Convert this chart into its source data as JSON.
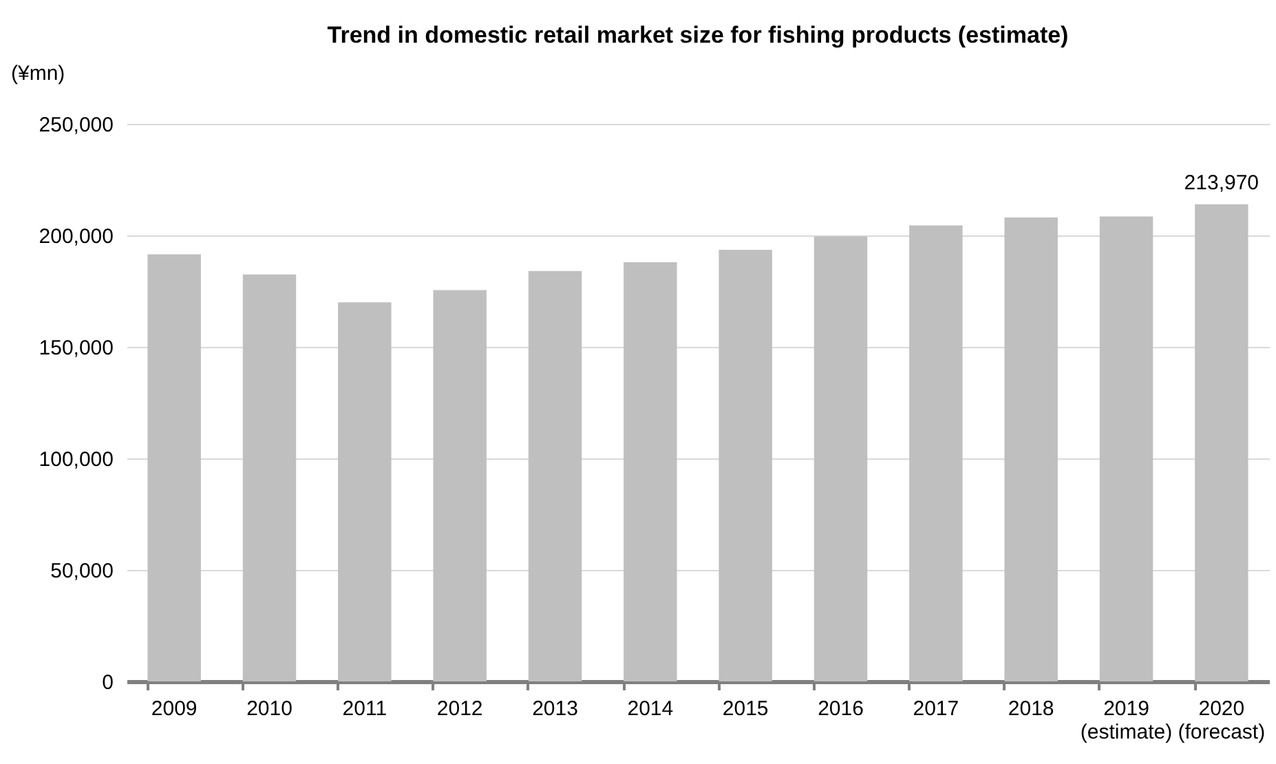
{
  "chart_data": {
    "type": "bar",
    "title": "Trend in domestic retail market size for fishing products (estimate)",
    "ylabel": "(¥mn)",
    "categories": [
      "2009",
      "2010",
      "2011",
      "2012",
      "2013",
      "2014",
      "2015",
      "2016",
      "2017",
      "2018",
      "2019 (estimate)",
      "2020 (forecast)"
    ],
    "values": [
      191500,
      182500,
      170000,
      175500,
      184000,
      188000,
      193500,
      199500,
      204500,
      208000,
      208500,
      213970
    ],
    "value_labels": [
      null,
      null,
      null,
      null,
      null,
      null,
      null,
      null,
      null,
      null,
      null,
      "213,970"
    ],
    "color": "#bfbfbf",
    "ylim": [
      0,
      250000
    ],
    "yticks": [
      0,
      {
        "value": 50000,
        "label": "50,000"
      },
      {
        "value": 100000,
        "label": "100,000"
      },
      {
        "value": 150000,
        "label": "150,000"
      },
      {
        "value": 200000,
        "label": "200,000"
      },
      {
        "value": 250000,
        "label": "250,000"
      }
    ],
    "grid": "y"
  }
}
